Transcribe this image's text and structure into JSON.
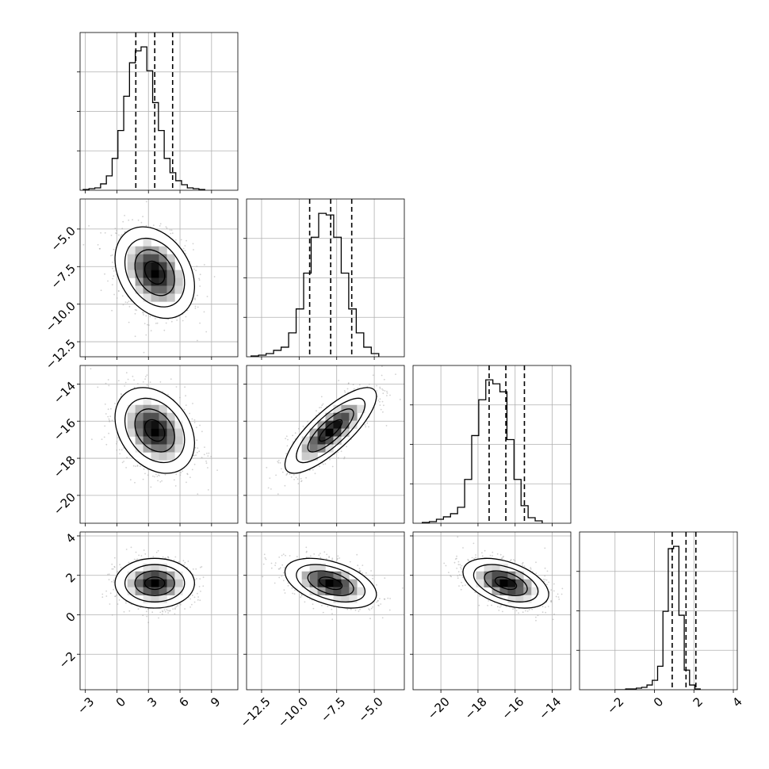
{
  "chart_data": {
    "type": "corner",
    "parameters": 4,
    "axes": {
      "p0": {
        "range": [
          -3.5,
          11.5
        ],
        "ticks": [
          "−3",
          "0",
          "3",
          "6",
          "9"
        ],
        "tick_values": [
          -3,
          0,
          3,
          6,
          9
        ]
      },
      "p1": {
        "range": [
          -13.5,
          -3.0
        ],
        "ticks": [
          "−12.5",
          "−10.0",
          "−7.5",
          "−5.0"
        ],
        "tick_values": [
          -12.5,
          -10.0,
          -7.5,
          -5.0
        ]
      },
      "p2": {
        "range": [
          -21.5,
          -13.0
        ],
        "ticks": [
          "−20",
          "−18",
          "−16",
          "−14"
        ],
        "tick_values": [
          -20,
          -18,
          -16,
          -14
        ]
      },
      "p3": {
        "range": [
          -3.8,
          4.2
        ],
        "ticks": [
          "−2",
          "0",
          "2",
          "4"
        ],
        "tick_values": [
          -2,
          0,
          2,
          4
        ]
      }
    },
    "marginals": [
      {
        "param": "p0",
        "quantiles": [
          1.8,
          3.6,
          5.3
        ],
        "bins_left": -3.2,
        "bin_width": 0.55,
        "counts": [
          1,
          2,
          3,
          8,
          18,
          40,
          75,
          118,
          160,
          175,
          180,
          150,
          110,
          75,
          40,
          22,
          12,
          7,
          3,
          2,
          1
        ]
      },
      {
        "param": "p1",
        "quantiles": [
          -9.3,
          -7.9,
          -6.5
        ],
        "bins_left": -13.2,
        "bin_width": 0.5,
        "counts": [
          1,
          2,
          4,
          8,
          12,
          30,
          60,
          105,
          150,
          180,
          178,
          150,
          105,
          60,
          30,
          12,
          4
        ]
      },
      {
        "param": "p2",
        "quantiles": [
          -17.4,
          -16.5,
          -15.5
        ],
        "bins_left": -21.0,
        "bin_width": 0.38,
        "counts": [
          1,
          2,
          5,
          8,
          12,
          20,
          55,
          110,
          155,
          180,
          175,
          165,
          105,
          55,
          22,
          7,
          3
        ]
      },
      {
        "param": "p3",
        "quantiles": [
          0.9,
          1.6,
          2.1
        ],
        "bins_left": -2.0,
        "bin_width": 0.27,
        "counts": [
          0,
          0,
          1,
          1,
          2,
          3,
          6,
          12,
          30,
          100,
          180,
          183,
          95,
          25,
          6,
          1
        ]
      }
    ],
    "joints": [
      {
        "x": "p0",
        "y": "p1",
        "center": [
          3.6,
          -7.9
        ],
        "sd": [
          1.8,
          1.45
        ],
        "rho": -0.3
      },
      {
        "x": "p0",
        "y": "p2",
        "center": [
          3.6,
          -16.5
        ],
        "sd": [
          1.8,
          1.1
        ],
        "rho": -0.3
      },
      {
        "x": "p1",
        "y": "p2",
        "center": [
          -7.9,
          -16.5
        ],
        "sd": [
          1.45,
          1.1
        ],
        "rho": 0.8
      },
      {
        "x": "p0",
        "y": "p3",
        "center": [
          3.6,
          1.6
        ],
        "sd": [
          1.8,
          0.6
        ],
        "rho": 0.0
      },
      {
        "x": "p1",
        "y": "p3",
        "center": [
          -7.9,
          1.6
        ],
        "sd": [
          1.45,
          0.6
        ],
        "rho": -0.45
      },
      {
        "x": "p2",
        "y": "p3",
        "center": [
          -16.5,
          1.6
        ],
        "sd": [
          1.1,
          0.6
        ],
        "rho": -0.45
      }
    ],
    "grid": true,
    "contour_sigmas": [
      0.5,
      1.0,
      1.5,
      2.0
    ]
  }
}
